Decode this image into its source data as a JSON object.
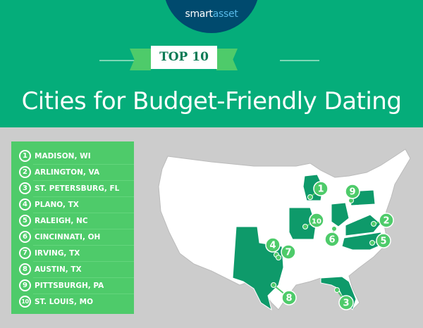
{
  "brand": {
    "logo_part1": "smart",
    "logo_part2": "asset"
  },
  "header": {
    "badge": "TOP 10",
    "title": "Cities for Budget-Friendly Dating"
  },
  "colors": {
    "header_bg": "#05ad7a",
    "logo_bg": "#004a6e",
    "list_bg": "#4ecb6a",
    "highlight_state": "#0e9a6a",
    "background": "#cccccc"
  },
  "cities": [
    {
      "rank": "1",
      "name": "MADISON, WI"
    },
    {
      "rank": "2",
      "name": "ARLINGTON, VA"
    },
    {
      "rank": "3",
      "name": "ST. PETERSBURG, FL"
    },
    {
      "rank": "4",
      "name": "PLANO, TX"
    },
    {
      "rank": "5",
      "name": "RALEIGH, NC"
    },
    {
      "rank": "6",
      "name": "CINCINNATI, OH"
    },
    {
      "rank": "7",
      "name": "IRVING, TX"
    },
    {
      "rank": "8",
      "name": "AUSTIN, TX"
    },
    {
      "rank": "9",
      "name": "PITTSBURGH, PA"
    },
    {
      "rank": "10",
      "name": "ST. LOUIS, MO"
    }
  ],
  "map": {
    "highlighted_states": [
      "WI",
      "VA",
      "FL",
      "TX",
      "NC",
      "OH",
      "PA",
      "MO"
    ]
  }
}
